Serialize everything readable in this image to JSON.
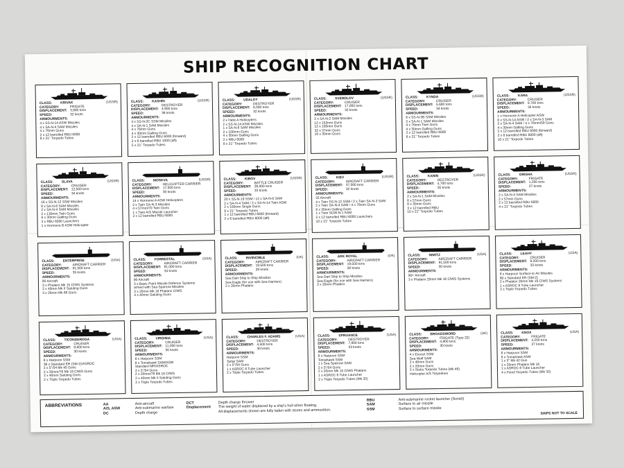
{
  "title": "SHIP RECOGNITION CHART",
  "labels": {
    "class": "CLASS:",
    "category": "CATEGORY:",
    "displacement": "DISPLACEMENT:",
    "speed": "SPEED:",
    "armaments": "ARMOURMENTS:"
  },
  "ships": [
    {
      "name": "KRIVAK",
      "nation": "(USSR)",
      "category": "FRIGATE",
      "displacement": "3,900 tons",
      "speed": "32 knots",
      "arms": [
        "4 x SS-N-14 ASW Missiles",
        "4 x SA-N-4 SAM Missiles",
        "4 x 76mm Guns",
        "2 x 12 barrelled RBU 6000",
        "8 x 21\" Torpedo Tubes"
      ]
    },
    {
      "name": "KASHIN",
      "nation": "(USSR)",
      "category": "DESTROYER",
      "displacement": "4,900 tons",
      "speed": "36 knots",
      "arms": [
        "4 x SS-N-2C SSM Missiles",
        "4 x SA-N-1 SAM Missiles",
        "4 x 76mm Guns",
        "4 x 30mm Gatling Guns",
        "2 x 12 barrelled RBU 6000 (forward)",
        "2 x 6 barrelled RBU 1000 (aft)",
        "5 x 21\" Torpedo Tubes"
      ]
    },
    {
      "name": "UDALOY",
      "nation": "(USSR)",
      "category": "DESTROYER",
      "displacement": "6,000 tons",
      "speed": "32 knots",
      "arms": [
        "2 x Helix A Helicopters",
        "2 x SS-N-14 ASW Missiles",
        "1 x SA-N-8 SAM Missiles",
        "2 x 100mm Guns",
        "4 x 30mm Gatling Guns",
        "2 x RBU 6000",
        "8 x 21\" Torpedo Tubes"
      ]
    },
    {
      "name": "SVERDLOV",
      "nation": "(USSR)",
      "category": "CRUISER",
      "displacement": "17,000 tons",
      "speed": "32 knots",
      "arms": [
        "2 x SA-N-2 SAM Missiles",
        "12 x 152mm Guns",
        "12 x 100mm Guns",
        "32 x 37mm Guns",
        "16 x 30mm Guns"
      ]
    },
    {
      "name": "KYNDA",
      "nation": "(USSR)",
      "category": "CRUISER",
      "displacement": "5,600 tons",
      "speed": "34 knots",
      "arms": [
        "8 x SS-N-3B SSM Missiles",
        "2 x SA-N-1 SAM Missiles",
        "4 x 76mm Twin Guns",
        "4 x 30mm Gatling Guns",
        "2 x 12 barrelled RBU 6000",
        "6 x 21\" Torpedo Tubes"
      ]
    },
    {
      "name": "KARA",
      "nation": "(USSR)",
      "category": "CRUISER",
      "displacement": "9,700 tons",
      "speed": "34 knots",
      "arms": [
        "1 x Hormone A Helicopter ASW",
        "8 x SS-N-14 ASW / 2 x SA-N-3 SAM",
        "2 x SA-N-4 SAM / 4 x 76mm/59 Guns",
        "4 x 30mm Gatling Guns",
        "2 x 12 barrelled RBU 6000 (forward)",
        "2 x 6 barrelled RBU 6000 (aft)",
        "10 x 21\" Torpedo Tubes"
      ]
    },
    {
      "name": "SLAVA",
      "nation": "(USSR)",
      "category": "CRUISER",
      "displacement": "12,500 tons",
      "speed": "34 knots",
      "arms": [
        "16 x SS-N-12 SSM Missiles",
        "8 x SA-N-6 SAM Missiles",
        "2 x SA-N-4 SAM Missiles",
        "2 x 130mm Twin Guns",
        "6 x 30mm Gatling Guns",
        "2 x RBU 6000 Launchers",
        "1 x Hormone B ASW Helicopter"
      ]
    },
    {
      "name": "MOSKVA",
      "nation": "(USSR)",
      "category": "HELICOPTER CARRIER",
      "displacement": "17,500 tons",
      "speed": "30 knots",
      "arms": [
        "14 x Hormone A ASW Helicopters",
        "2 x Twin SA-N-3 Missiles",
        "4 x 57mm/70 Twin Guns",
        "1 x Twin A/S Missile Launcher",
        "2 x 12 barrelled RBU 6000"
      ]
    },
    {
      "name": "KIROV",
      "nation": "(USSR)",
      "category": "BATTLE CRUISER",
      "displacement": "28,000 tons",
      "speed": "33 knots",
      "arms": [
        "20 x SS-N-19 SSM / 12 x SA-N-6 SAM",
        "2 x SA-N-4 SAM / 2 x SS-N-14 Twin ASW",
        "2 x 100mm Single Guns",
        "8 x 21\" Torpedo Tubes",
        "1 x 12 barrelled RBU 6000 (forward)",
        "2 x 6 barrelled RBU 6000 (aft)"
      ]
    },
    {
      "name": "KIEV",
      "nation": "(USSR)",
      "category": "AIRCRAFT CARRIER",
      "displacement": "37,000 tons",
      "speed": "32 knots",
      "arms": [
        "32 Aircraft",
        "4 x Twin SS-N-12 SSM / 2 x Twin SA-N-3 SAM",
        "2 x Twin SA-N-4 SAM / 4 x 76mm Guns",
        "8 x 30mm Gatling Guns",
        "1 x Twin SUW-N-1 ASM",
        "2 x 12 barrelled RBU 6000 Launchers",
        "10 x 21\" Torpedo Tubes"
      ]
    },
    {
      "name": "KANIN",
      "nation": "(USSR)",
      "category": "DESTROYER",
      "displacement": "4,700 tons",
      "speed": "35 knots",
      "arms": [
        "2 x SA-N-1 SAM Missiles",
        "8 x 57mm Guns",
        "8 x 30mm Guns",
        "3 x 12 barrelled RBU",
        "10 x 21\" Torpedo Tubes"
      ]
    },
    {
      "name": "GRISHA",
      "nation": "(USSR)",
      "category": "FRIGATE",
      "displacement": "1,200 tons",
      "speed": "27 knots",
      "arms": [
        "2 x SA-N-4 SAM Missiles",
        "2 x 57mm Guns",
        "2 x 12 barrelled RBU 6000",
        "4 x 21\" Torpedo Tubes"
      ]
    },
    {
      "name": "ENTERPRISE",
      "nation": "(USA)",
      "category": "AIRCRAFT CARRIER",
      "displacement": "91,000 tons",
      "speed": "35 knots",
      "arms": [
        "90 Aircraft",
        "3 x Phalanx Mk 15 CIWS Systems",
        "2 x 40mm Mk II Saluting Guns",
        "3 x 20mm Mk 68 Guns"
      ]
    },
    {
      "name": "FORRESTAL",
      "nation": "(USA)",
      "category": "AIRCRAFT CARRIER",
      "displacement": "81,000 tons",
      "speed": "34 knots",
      "arms": [
        "90 Aircraft",
        "3 x Basic Point Missile Defence Systems",
        "   armed with Sea Sparrow Missiles",
        "3 x 20mm Mk 16 Phalanx CIWS",
        "4 x 40mm Saluting Guns"
      ]
    },
    {
      "name": "INVINCIBLE",
      "nation": "(UK)",
      "category": "AIRCRAFT CARRIER",
      "displacement": "19,500 tons",
      "speed": "28 knots",
      "arms": [
        "Sea Dart Ship to Ship Missiles",
        "Sea Eagle (for use with Sea Harriers)",
        "2 x 20mm Phalanx"
      ]
    },
    {
      "name": "ARK ROYAL",
      "nation": "(UK)",
      "category": "AIRCRAFT CARRIER",
      "displacement": "19,500 tons",
      "speed": "28 knots",
      "arms": [
        "Sea Dart Ship to Ship Missiles",
        "Sea Eagle (for use with Sea Harriers)",
        "3 x 20mm Phalanx"
      ]
    },
    {
      "name": "NIMITZ",
      "nation": "(USA)",
      "category": "AIRCRAFT CARRIER",
      "displacement": "91,500 tons",
      "speed": "30 knots",
      "arms": [
        "90+ Aircraft",
        "3 x Phalanx 20mm Mk 16 CIWS Systems"
      ]
    },
    {
      "name": "LEAHY",
      "nation": "(USA)",
      "category": "CRUISER",
      "displacement": "8,200 tons",
      "speed": "33 knots",
      "arms": [
        "8 x Harpoon Surface to Air Missiles",
        "80 x Standard ER (SM-2)",
        "2 x Phalanx 20mm Mk 16 CIWS Systems",
        "1 x ASROC 8 Tube Launcher",
        "2 x Triple Torpedo Tubes"
      ]
    },
    {
      "name": "TICONDEROGA",
      "nation": "(USA)",
      "category": "CRUISER",
      "displacement": "9,600 tons",
      "speed": "30 knots",
      "arms": [
        "8 x Harpoon SSM",
        "38 x Standard ER (SM-2)/ASROC",
        "2 x 5\"/54 Mk 45 Guns",
        "2 x 20mm/76 Mk 16 CIWS Guns",
        "2 x 40mm Saluting Guns",
        "2 x Triple Torpedo Tubes"
      ]
    },
    {
      "name": "VIRGINIA",
      "nation": "(USA)",
      "category": "CRUISER",
      "displacement": "11,000 tons",
      "speed": "30 knots",
      "arms": [
        "8 x Harpoon SSM",
        "8 x Tomahawk SAM/ASW",
        "Standard MR/ASROC",
        "2 x 5\"/54 Guns",
        "2 x 20mm/76 Mk 16 CIWS",
        "2 x 40mm Mk II Saluting Guns",
        "2 x Triple Torpedo Tubes"
      ]
    },
    {
      "name": "CHARLES F. ADAMS",
      "nation": "(USA)",
      "category": "DESTROYER",
      "displacement": "4,500 tons",
      "speed": "30 knots",
      "arms": [
        "Harpoon SSM",
        "Tartar SAM",
        "2 x 5\"/54 Guns",
        "1 x ASROC 8 Tube Launcher",
        "2 x Triple Torpedo Tubes"
      ]
    },
    {
      "name": "SPRUANCE",
      "nation": "(USA)",
      "category": "DESTROYER",
      "displacement": "7,800 tons",
      "speed": "33 knots",
      "arms": [
        "8 x Harpoon SSM",
        "Tomahawk SSM",
        "1 x Sea Sparrow SAM",
        "2 x 5\"/54 Guns",
        "2 x 20mm Mk 15 CIWS Phalanx",
        "1 x ASROC 8 Tube Launcher",
        "2 x Triple Torpedo Tubes (Mk 32)"
      ]
    },
    {
      "name": "BROADSWORD",
      "nation": "(UK)",
      "category": "FRIGATE (Type 22)",
      "displacement": "4,900 tons",
      "speed": "30 knots",
      "arms": [
        "4 x Exocet SSM",
        "Sea Wolf SAM",
        "2 x 40mm Guns",
        "2 x 20mm Guns",
        "2 x Stubs Torpedo Tubes (Mk 46)",
        "Helicopter A/S Torpedoes"
      ]
    },
    {
      "name": "KNOX",
      "nation": "(USA)",
      "category": "FRIGATE",
      "displacement": "4,200 tons",
      "speed": "27 knots",
      "arms": [
        "8 x Harpoon SSM",
        "8 x Tomahawk ASM",
        "1 x 5\" Mk 42 Gun",
        "1 x 20mm Phalanx Mk 16",
        "1 x ASROC 8 Tube Launcher",
        "4 x Fixed Torpedo Tubes (Mk 32)"
      ]
    }
  ],
  "abbreviations": {
    "heading": "ABBREVIATIONS",
    "col1": [
      {
        "k": "AA",
        "v": "Anti-aircraft"
      },
      {
        "k": "A/S, ASW",
        "v": "Anti-submarine warfare"
      },
      {
        "k": "DC",
        "v": "Depth charge"
      }
    ],
    "col2": [
      {
        "k": "DCT",
        "v": "Depth charge thrower"
      },
      {
        "k": "Displacement",
        "v": "The weight of water displaced by a ship's hull when floating."
      },
      {
        "k": "",
        "v": "All displacements shown are fully laden with stores and ammunition."
      }
    ],
    "col3": [
      {
        "k": "RBU",
        "v": "Anti-submarine rocket launcher (Soviet)"
      },
      {
        "k": "SAM",
        "v": "Surface to air missile"
      },
      {
        "k": "SSM",
        "v": "Surface to surface missile"
      }
    ],
    "scale_note": "SHIPS NOT TO SCALE"
  }
}
